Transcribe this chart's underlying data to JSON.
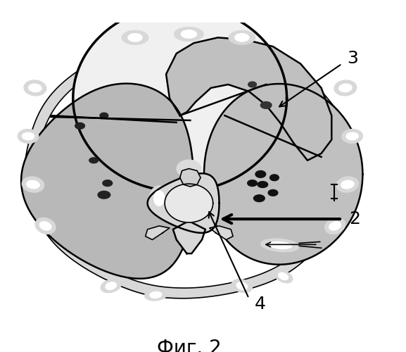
{
  "title": "Фиг. 2",
  "title_fontsize": 20,
  "background_color": "#ffffff",
  "fig_width": 5.77,
  "fig_height": 5.0,
  "dpi": 100,
  "black": "#000000",
  "white": "#ffffff",
  "gray_light": "#d8d8d8",
  "gray_med": "#b8b8b8",
  "gray_dark": "#909090",
  "gray_tex": "#c0c0c0"
}
